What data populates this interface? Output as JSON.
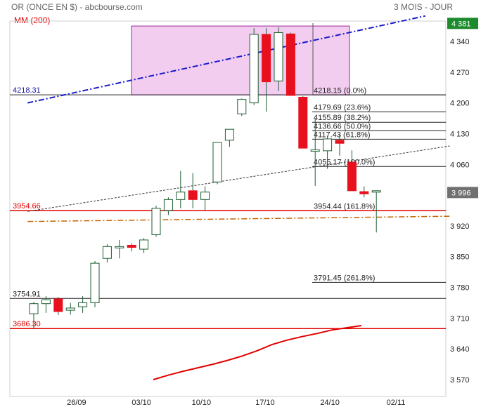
{
  "header": {
    "instrument": "OR (ONCE EN $) - abcbourse.com",
    "period": "3 MOIS - JOUR",
    "indicator": "MM (200)"
  },
  "colors": {
    "up_body": "#ffffff",
    "down_body": "#e8101c",
    "candle_line": "#1e5e32",
    "ma": "#e00000",
    "zone_fill": "#f2cdf0",
    "zone_stroke": "#9a2a9a",
    "trend_blue": "#1a1acc",
    "trend_black": "#333333",
    "support_orange": "#c86400",
    "last_badge": "#1e8a2e",
    "price_badge": "#707070"
  },
  "chart_data": {
    "type": "candlestick",
    "y_axis": {
      "ticks": [
        "4 340",
        "4 270",
        "4 200",
        "4 130",
        "4 060",
        "3 920",
        "3 850",
        "3 780",
        "3 710",
        "3 640",
        "3 570"
      ],
      "tick_values": [
        4340,
        4270,
        4200,
        4130,
        4060,
        3920,
        3850,
        3780,
        3710,
        3640,
        3570
      ],
      "range": [
        3550,
        4400
      ]
    },
    "x_axis": {
      "ticks": [
        "26/09",
        "03/10",
        "10/10",
        "17/10",
        "24/10",
        "02/11"
      ]
    },
    "candles": [
      {
        "o": 3720,
        "h": 3747,
        "l": 3685,
        "c": 3743
      },
      {
        "o": 3743,
        "h": 3760,
        "l": 3722,
        "c": 3752
      },
      {
        "o": 3754,
        "h": 3758,
        "l": 3717,
        "c": 3725
      },
      {
        "o": 3728,
        "h": 3745,
        "l": 3718,
        "c": 3733
      },
      {
        "o": 3736,
        "h": 3760,
        "l": 3722,
        "c": 3745
      },
      {
        "o": 3745,
        "h": 3840,
        "l": 3735,
        "c": 3835
      },
      {
        "o": 3846,
        "h": 3878,
        "l": 3837,
        "c": 3873
      },
      {
        "o": 3870,
        "h": 3888,
        "l": 3846,
        "c": 3873
      },
      {
        "o": 3876,
        "h": 3880,
        "l": 3862,
        "c": 3871
      },
      {
        "o": 3867,
        "h": 3892,
        "l": 3858,
        "c": 3888
      },
      {
        "o": 3900,
        "h": 3966,
        "l": 3895,
        "c": 3960
      },
      {
        "o": 3955,
        "h": 3985,
        "l": 3945,
        "c": 3980
      },
      {
        "o": 3980,
        "h": 4045,
        "l": 3960,
        "c": 3997
      },
      {
        "o": 4000,
        "h": 4040,
        "l": 3960,
        "c": 3980
      },
      {
        "o": 3980,
        "h": 4010,
        "l": 3955,
        "c": 3997
      },
      {
        "o": 4020,
        "h": 4110,
        "l": 4015,
        "c": 4110
      },
      {
        "o": 4115,
        "h": 4140,
        "l": 4100,
        "c": 4140
      },
      {
        "o": 4175,
        "h": 4210,
        "l": 4170,
        "c": 4208
      },
      {
        "o": 4200,
        "h": 4370,
        "l": 4195,
        "c": 4356
      },
      {
        "o": 4356,
        "h": 4370,
        "l": 4180,
        "c": 4248
      },
      {
        "o": 4250,
        "h": 4372,
        "l": 4227,
        "c": 4360
      },
      {
        "o": 4357,
        "h": 4360,
        "l": 4220,
        "c": 4217
      },
      {
        "o": 4213,
        "h": 4215,
        "l": 4098,
        "c": 4097
      },
      {
        "o": 4093,
        "h": 4165,
        "l": 4011,
        "c": 4093
      },
      {
        "o": 4091,
        "h": 4125,
        "l": 4050,
        "c": 4118
      },
      {
        "o": 4115,
        "h": 4130,
        "l": 4080,
        "c": 4108
      },
      {
        "o": 4065,
        "h": 4092,
        "l": 4000,
        "c": 4000
      },
      {
        "o": 3998,
        "h": 4010,
        "l": 3985,
        "c": 3993
      },
      {
        "o": 3997,
        "h": 4000,
        "l": 3905,
        "c": 4000
      }
    ],
    "moving_average": {
      "name": "MM (200)",
      "values": [
        3570,
        3580,
        3589,
        3597,
        3605,
        3614,
        3624,
        3636,
        3650,
        3660,
        3668,
        3675,
        3683,
        3688,
        3693
      ]
    },
    "resistance_zone": {
      "low": 4218.15,
      "high": 4375
    },
    "fibonacci": [
      {
        "value": 4218.15,
        "label": "4218.15",
        "pct": "(0.0%)"
      },
      {
        "value": 4179.69,
        "label": "4179.69",
        "pct": "(23.6%)"
      },
      {
        "value": 4155.89,
        "label": "4155.89",
        "pct": "(38.2%)"
      },
      {
        "value": 4136.66,
        "label": "4136.66",
        "pct": "(50.0%)"
      },
      {
        "value": 4117.43,
        "label": "4117.43",
        "pct": "(61.8%)"
      },
      {
        "value": 4055.17,
        "label": "4055.17",
        "pct": "(100.0%)"
      },
      {
        "value": 3954.44,
        "label": "3954.44",
        "pct": "(161.8%)"
      },
      {
        "value": 3791.45,
        "label": "3791.45",
        "pct": "(261.8%)"
      }
    ],
    "horizontal_levels": [
      {
        "value": 4218.31,
        "label": "4218.31",
        "style": "blue"
      },
      {
        "value": 3954.66,
        "label": "3954.66",
        "style": "red"
      },
      {
        "value": 3754.91,
        "label": "3754.91",
        "style": "black"
      },
      {
        "value": 3686.3,
        "label": "3686.30",
        "style": "red"
      }
    ],
    "trendlines": [
      {
        "name": "blue-trend",
        "from": [
          -0.5,
          4200
        ],
        "to": [
          32,
          4398
        ]
      },
      {
        "name": "black-trend",
        "from": [
          -0.5,
          3953
        ],
        "to": [
          34,
          4102
        ]
      },
      {
        "name": "orange-support",
        "from": [
          -0.5,
          3930
        ],
        "to": [
          34,
          3942
        ]
      }
    ],
    "last_price": {
      "value": 4381,
      "label": "4 381"
    },
    "marker_price": {
      "value": 3996,
      "label": "3 996"
    }
  }
}
